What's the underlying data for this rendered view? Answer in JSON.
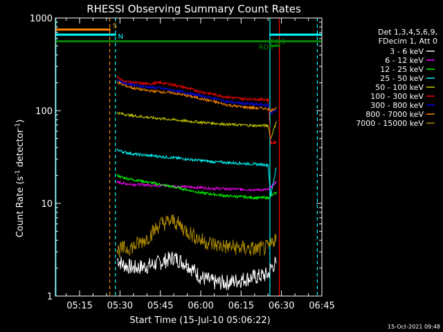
{
  "chart_data": {
    "type": "line",
    "title": "RHESSI Observing Summary Count Rates",
    "xlabel": "Start Time (15-Jul-10 05:06:22)",
    "ylabel_main": "Count Rate (s",
    "ylabel_sup1": "-1",
    "ylabel_mid": " detector",
    "ylabel_sup2": "-1",
    "ylabel_end": ")",
    "yscale": "log",
    "ylim": [
      1,
      1000
    ],
    "xlim_minutes": [
      306,
      405
    ],
    "x_tick_labels": [
      "05:15",
      "05:30",
      "05:45",
      "06:00",
      "06:15",
      "06:30",
      "06:45"
    ],
    "x_tick_minutes": [
      315,
      330,
      345,
      360,
      375,
      390,
      405
    ],
    "y_tick_labels": [
      "1",
      "10",
      "100",
      "1000"
    ],
    "y_tick_values": [
      1,
      10,
      100,
      1000
    ],
    "legend_header": [
      "Det 1,3,4,5,6,9,",
      "FDecim 1, Att 0"
    ],
    "series": [
      {
        "name": "3 - 6 keV",
        "color": "#ffffff",
        "x": [
          329,
          331,
          335,
          340,
          345,
          350,
          355,
          360,
          365,
          370,
          375,
          380,
          385,
          386,
          388
        ],
        "values": [
          2.5,
          2.2,
          2.0,
          2.1,
          2.3,
          2.6,
          2.2,
          1.6,
          1.4,
          1.4,
          1.5,
          1.6,
          1.7,
          2.0,
          2.3
        ]
      },
      {
        "name": "6 - 12 keV",
        "color": "#ff00ff",
        "x": [
          329,
          331,
          335,
          340,
          345,
          350,
          355,
          360,
          365,
          370,
          375,
          380,
          385,
          386,
          388
        ],
        "values": [
          17,
          16.5,
          16,
          15.8,
          15.6,
          15.3,
          15.0,
          14.8,
          14.5,
          14.3,
          14.2,
          14.0,
          14.0,
          15,
          17
        ]
      },
      {
        "name": "12 - 25 keV",
        "color": "#00ff00",
        "x": [
          329,
          331,
          335,
          340,
          345,
          350,
          355,
          360,
          365,
          370,
          375,
          380,
          385,
          386,
          388
        ],
        "values": [
          20,
          19,
          18,
          17,
          16,
          15,
          14,
          13,
          12.5,
          12,
          11.8,
          11.5,
          11.5,
          12,
          13
        ]
      },
      {
        "name": "25 - 50 keV",
        "color": "#00ffff",
        "x": [
          329,
          331,
          335,
          340,
          345,
          350,
          355,
          360,
          365,
          370,
          375,
          380,
          385,
          386,
          388
        ],
        "values": [
          38,
          36,
          34,
          33,
          32,
          31,
          30,
          29,
          28,
          27.5,
          27,
          26.5,
          26,
          12,
          24
        ]
      },
      {
        "name": "50 - 100 keV",
        "color": "#cccc00",
        "x": [
          329,
          331,
          335,
          340,
          345,
          350,
          355,
          360,
          365,
          370,
          375,
          380,
          385,
          386,
          388
        ],
        "values": [
          95,
          92,
          88,
          85,
          82,
          80,
          77,
          75,
          73,
          71,
          70,
          69,
          69,
          50,
          75
        ]
      },
      {
        "name": "100 - 300 keV",
        "color": "#ff0000",
        "x": [
          329,
          331,
          335,
          340,
          345,
          350,
          355,
          360,
          365,
          370,
          375,
          380,
          385,
          386,
          388
        ],
        "values": [
          230,
          210,
          200,
          195,
          200,
          190,
          175,
          160,
          150,
          140,
          135,
          133,
          132,
          45,
          45
        ]
      },
      {
        "name": "300 - 800 keV",
        "color": "#0000ff",
        "x": [
          329,
          331,
          335,
          340,
          345,
          350,
          355,
          360,
          365,
          370,
          375,
          380,
          385,
          386,
          388
        ],
        "values": [
          215,
          200,
          190,
          180,
          175,
          165,
          155,
          145,
          135,
          125,
          120,
          117,
          115,
          95,
          100
        ]
      },
      {
        "name": "800 - 7000 keV",
        "color": "#ff8800",
        "x": [
          329,
          331,
          335,
          340,
          345,
          350,
          355,
          360,
          365,
          370,
          375,
          380,
          385,
          386,
          388
        ],
        "values": [
          205,
          190,
          175,
          165,
          160,
          155,
          145,
          135,
          125,
          115,
          110,
          107,
          105,
          100,
          108
        ]
      },
      {
        "name": "7000 - 15000 keV",
        "color": "#aa8800",
        "x": [
          329,
          331,
          335,
          340,
          345,
          350,
          355,
          360,
          365,
          370,
          375,
          380,
          385,
          386,
          388
        ],
        "values": [
          3.1,
          3.2,
          3.4,
          4.2,
          6.0,
          6.5,
          5.0,
          4.0,
          3.6,
          3.4,
          3.3,
          3.2,
          3.3,
          3.5,
          4.5
        ]
      }
    ],
    "annotations": [
      {
        "label": "S",
        "color": "#ff8800",
        "y": 750,
        "x_start": 306,
        "x_end": 326.5
      },
      {
        "label": "N",
        "color": "#00ffff",
        "y": 660,
        "x_start": 306,
        "x_end": 328.5
      },
      {
        "label": "RD6",
        "color": "#008800",
        "y": 560,
        "x_start": 306,
        "x_end": 405
      },
      {
        "label": "RD9",
        "color": "#008800",
        "y": 500,
        "x_start": 385.5,
        "x_end": 389.5
      },
      {
        "label": "",
        "color": "#00ffff",
        "y": 660,
        "x_start": 385.5,
        "x_end": 405
      }
    ],
    "vertical_markers": [
      {
        "x": 306.2,
        "color": "#00ffff",
        "style": "solid"
      },
      {
        "x": 326.2,
        "color": "#ff8800",
        "style": "dashed"
      },
      {
        "x": 328.3,
        "color": "#00ffff",
        "style": "dashed"
      },
      {
        "x": 385.7,
        "color": "#00ffff",
        "style": "solid"
      },
      {
        "x": 389.2,
        "color": "#ff0000",
        "style": "solid"
      },
      {
        "x": 403.3,
        "color": "#00ffff",
        "style": "dashed"
      }
    ]
  },
  "footer_timestamp": "15-Oct-2021 09:48"
}
